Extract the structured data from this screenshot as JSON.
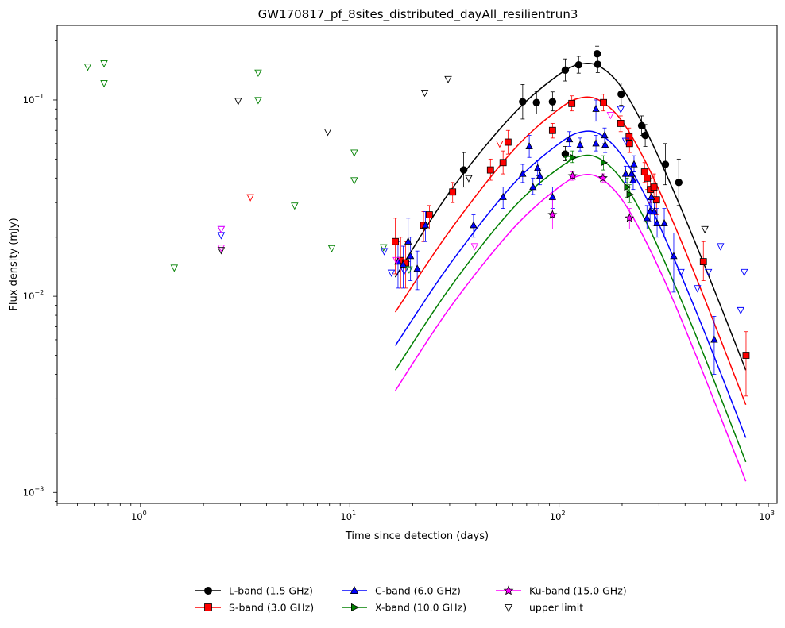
{
  "chart_data": {
    "type": "scatter",
    "title": "GW170817_pf_8sites_distributed_dayAll_resilientrun3",
    "xlabel": "Time since detection (days)",
    "ylabel": "Flux density (mJy)",
    "xscale": "log",
    "yscale": "log",
    "xlim": [
      0.4,
      1100
    ],
    "ylim": [
      0.00088,
      0.24
    ],
    "grid": false,
    "legend_position": "bottom-center",
    "x_ticks": [
      {
        "value": 1,
        "base": "10",
        "exp": "0"
      },
      {
        "value": 10,
        "base": "10",
        "exp": "1"
      },
      {
        "value": 100,
        "base": "10",
        "exp": "2"
      },
      {
        "value": 1000,
        "base": "10",
        "exp": "3"
      }
    ],
    "y_ticks": [
      {
        "value": 0.001,
        "base": "10",
        "exp": "−3"
      },
      {
        "value": 0.01,
        "base": "10",
        "exp": "−2"
      },
      {
        "value": 0.1,
        "base": "10",
        "exp": "−1"
      }
    ],
    "series": [
      {
        "name": "L-band (1.5 GHz)",
        "color": "#000000",
        "marker": "circle",
        "curve": [
          [
            16.5,
            0.0125
          ],
          [
            30,
            0.034
          ],
          [
            60,
            0.084
          ],
          [
            100,
            0.135
          ],
          [
            130,
            0.153
          ],
          [
            160,
            0.146
          ],
          [
            200,
            0.115
          ],
          [
            260,
            0.07
          ],
          [
            350,
            0.035
          ],
          [
            500,
            0.014
          ],
          [
            780,
            0.0042
          ]
        ],
        "points": [
          {
            "x": 35,
            "y": 0.044,
            "lo": 0.036,
            "hi": 0.054
          },
          {
            "x": 67,
            "y": 0.098,
            "lo": 0.08,
            "hi": 0.12
          },
          {
            "x": 78,
            "y": 0.097,
            "lo": 0.085,
            "hi": 0.11
          },
          {
            "x": 93,
            "y": 0.098,
            "lo": 0.088,
            "hi": 0.11
          },
          {
            "x": 107,
            "y": 0.142,
            "lo": 0.125,
            "hi": 0.162
          },
          {
            "x": 107,
            "y": 0.053,
            "lo": 0.049,
            "hi": 0.058
          },
          {
            "x": 124,
            "y": 0.151,
            "lo": 0.137,
            "hi": 0.167
          },
          {
            "x": 152,
            "y": 0.172,
            "lo": 0.157,
            "hi": 0.188
          },
          {
            "x": 153,
            "y": 0.152,
            "lo": 0.138,
            "hi": 0.167
          },
          {
            "x": 198,
            "y": 0.107,
            "lo": 0.094,
            "hi": 0.122
          },
          {
            "x": 248,
            "y": 0.074,
            "lo": 0.066,
            "hi": 0.083
          },
          {
            "x": 258,
            "y": 0.066,
            "lo": 0.058,
            "hi": 0.075
          },
          {
            "x": 322,
            "y": 0.047,
            "lo": 0.037,
            "hi": 0.06
          },
          {
            "x": 373,
            "y": 0.038,
            "lo": 0.029,
            "hi": 0.05
          }
        ]
      },
      {
        "name": "S-band (3.0 GHz)",
        "color": "#ff0000",
        "marker": "square",
        "curve": [
          [
            16.5,
            0.0083
          ],
          [
            30,
            0.0215
          ],
          [
            60,
            0.055
          ],
          [
            100,
            0.09
          ],
          [
            130,
            0.103
          ],
          [
            160,
            0.098
          ],
          [
            200,
            0.078
          ],
          [
            260,
            0.048
          ],
          [
            350,
            0.024
          ],
          [
            500,
            0.0095
          ],
          [
            780,
            0.0028
          ]
        ],
        "points": [
          {
            "x": 16.5,
            "y": 0.019,
            "lo": 0.013,
            "hi": 0.025
          },
          {
            "x": 17.5,
            "y": 0.0152,
            "lo": 0.011,
            "hi": 0.02
          },
          {
            "x": 18.5,
            "y": 0.0148,
            "lo": 0.011,
            "hi": 0.019
          },
          {
            "x": 22.5,
            "y": 0.023,
            "lo": 0.019,
            "hi": 0.027
          },
          {
            "x": 24,
            "y": 0.026,
            "lo": 0.022,
            "hi": 0.029
          },
          {
            "x": 31,
            "y": 0.034,
            "lo": 0.03,
            "hi": 0.038
          },
          {
            "x": 47,
            "y": 0.044,
            "lo": 0.039,
            "hi": 0.05
          },
          {
            "x": 54,
            "y": 0.048,
            "lo": 0.042,
            "hi": 0.055
          },
          {
            "x": 57,
            "y": 0.061,
            "lo": 0.053,
            "hi": 0.07
          },
          {
            "x": 93,
            "y": 0.07,
            "lo": 0.064,
            "hi": 0.076
          },
          {
            "x": 115,
            "y": 0.096,
            "lo": 0.088,
            "hi": 0.105
          },
          {
            "x": 163,
            "y": 0.097,
            "lo": 0.088,
            "hi": 0.107
          },
          {
            "x": 197,
            "y": 0.076,
            "lo": 0.069,
            "hi": 0.083
          },
          {
            "x": 216,
            "y": 0.065,
            "lo": 0.059,
            "hi": 0.072
          },
          {
            "x": 217,
            "y": 0.06,
            "lo": 0.054,
            "hi": 0.066
          },
          {
            "x": 256,
            "y": 0.043,
            "lo": 0.038,
            "hi": 0.048
          },
          {
            "x": 264,
            "y": 0.04,
            "lo": 0.035,
            "hi": 0.045
          },
          {
            "x": 273,
            "y": 0.035,
            "lo": 0.03,
            "hi": 0.04
          },
          {
            "x": 284,
            "y": 0.036,
            "lo": 0.031,
            "hi": 0.042
          },
          {
            "x": 292,
            "y": 0.031,
            "lo": 0.026,
            "hi": 0.036
          },
          {
            "x": 489,
            "y": 0.015,
            "lo": 0.012,
            "hi": 0.019
          },
          {
            "x": 782,
            "y": 0.005,
            "lo": 0.0031,
            "hi": 0.0066
          }
        ]
      },
      {
        "name": "C-band (6.0 GHz)",
        "color": "#0000ff",
        "marker": "triangle-up",
        "curve": [
          [
            16.5,
            0.0056
          ],
          [
            30,
            0.0145
          ],
          [
            60,
            0.037
          ],
          [
            100,
            0.06
          ],
          [
            130,
            0.069
          ],
          [
            160,
            0.066
          ],
          [
            200,
            0.052
          ],
          [
            260,
            0.032
          ],
          [
            350,
            0.016
          ],
          [
            500,
            0.0064
          ],
          [
            780,
            0.0019
          ]
        ],
        "points": [
          {
            "x": 17,
            "y": 0.015,
            "lo": 0.011,
            "hi": 0.019
          },
          {
            "x": 18,
            "y": 0.0145,
            "lo": 0.011,
            "hi": 0.018
          },
          {
            "x": 19,
            "y": 0.019,
            "lo": 0.015,
            "hi": 0.025
          },
          {
            "x": 19.5,
            "y": 0.016,
            "lo": 0.012,
            "hi": 0.02
          },
          {
            "x": 21,
            "y": 0.0138,
            "lo": 0.0108,
            "hi": 0.017
          },
          {
            "x": 23,
            "y": 0.023,
            "lo": 0.019,
            "hi": 0.027
          },
          {
            "x": 39,
            "y": 0.023,
            "lo": 0.02,
            "hi": 0.026
          },
          {
            "x": 54,
            "y": 0.032,
            "lo": 0.028,
            "hi": 0.036
          },
          {
            "x": 67,
            "y": 0.042,
            "lo": 0.038,
            "hi": 0.047
          },
          {
            "x": 72,
            "y": 0.058,
            "lo": 0.051,
            "hi": 0.066
          },
          {
            "x": 75,
            "y": 0.036,
            "lo": 0.033,
            "hi": 0.04
          },
          {
            "x": 79,
            "y": 0.045,
            "lo": 0.041,
            "hi": 0.049
          },
          {
            "x": 81,
            "y": 0.041,
            "lo": 0.037,
            "hi": 0.045
          },
          {
            "x": 93,
            "y": 0.032,
            "lo": 0.028,
            "hi": 0.036
          },
          {
            "x": 112,
            "y": 0.063,
            "lo": 0.058,
            "hi": 0.069
          },
          {
            "x": 126,
            "y": 0.059,
            "lo": 0.055,
            "hi": 0.064
          },
          {
            "x": 150,
            "y": 0.09,
            "lo": 0.078,
            "hi": 0.1
          },
          {
            "x": 150,
            "y": 0.06,
            "lo": 0.055,
            "hi": 0.066
          },
          {
            "x": 165,
            "y": 0.066,
            "lo": 0.06,
            "hi": 0.072
          },
          {
            "x": 166,
            "y": 0.059,
            "lo": 0.054,
            "hi": 0.065
          },
          {
            "x": 208,
            "y": 0.042,
            "lo": 0.038,
            "hi": 0.046
          },
          {
            "x": 222,
            "y": 0.042,
            "lo": 0.038,
            "hi": 0.046
          },
          {
            "x": 226,
            "y": 0.039,
            "lo": 0.035,
            "hi": 0.043
          },
          {
            "x": 228,
            "y": 0.047,
            "lo": 0.043,
            "hi": 0.052
          },
          {
            "x": 263,
            "y": 0.025,
            "lo": 0.022,
            "hi": 0.029
          },
          {
            "x": 272,
            "y": 0.027,
            "lo": 0.024,
            "hi": 0.031
          },
          {
            "x": 276,
            "y": 0.032,
            "lo": 0.028,
            "hi": 0.036
          },
          {
            "x": 285,
            "y": 0.027,
            "lo": 0.023,
            "hi": 0.032
          },
          {
            "x": 294,
            "y": 0.0235,
            "lo": 0.02,
            "hi": 0.028
          },
          {
            "x": 318,
            "y": 0.0235,
            "lo": 0.02,
            "hi": 0.028
          },
          {
            "x": 353,
            "y": 0.016,
            "lo": 0.0105,
            "hi": 0.021
          },
          {
            "x": 551,
            "y": 0.006,
            "lo": 0.004,
            "hi": 0.0079
          }
        ]
      },
      {
        "name": "X-band (10.0 GHz)",
        "color": "#008000",
        "marker": "triangle-right",
        "curve": [
          [
            16.5,
            0.0042
          ],
          [
            30,
            0.011
          ],
          [
            60,
            0.028
          ],
          [
            100,
            0.045
          ],
          [
            130,
            0.052
          ],
          [
            160,
            0.0495
          ],
          [
            200,
            0.039
          ],
          [
            260,
            0.024
          ],
          [
            350,
            0.012
          ],
          [
            500,
            0.0048
          ],
          [
            780,
            0.00143
          ]
        ],
        "points": [
          {
            "x": 116,
            "y": 0.051,
            "lo": 0.048,
            "hi": 0.055
          },
          {
            "x": 163,
            "y": 0.048,
            "lo": 0.044,
            "hi": 0.052
          },
          {
            "x": 211,
            "y": 0.036,
            "lo": 0.032,
            "hi": 0.04
          },
          {
            "x": 217,
            "y": 0.033,
            "lo": 0.03,
            "hi": 0.037
          }
        ]
      },
      {
        "name": "Ku-band (15.0 GHz)",
        "color": "#ff00ff",
        "marker": "star",
        "curve": [
          [
            16.5,
            0.0033
          ],
          [
            30,
            0.0087
          ],
          [
            60,
            0.022
          ],
          [
            100,
            0.036
          ],
          [
            130,
            0.0415
          ],
          [
            160,
            0.0395
          ],
          [
            200,
            0.031
          ],
          [
            260,
            0.019
          ],
          [
            350,
            0.0096
          ],
          [
            500,
            0.0038
          ],
          [
            780,
            0.00114
          ]
        ],
        "points": [
          {
            "x": 93,
            "y": 0.026,
            "lo": 0.022,
            "hi": 0.031
          },
          {
            "x": 116,
            "y": 0.041,
            "lo": 0.039,
            "hi": 0.043
          },
          {
            "x": 162,
            "y": 0.04,
            "lo": 0.038,
            "hi": 0.042
          },
          {
            "x": 217,
            "y": 0.025,
            "lo": 0.022,
            "hi": 0.028
          }
        ]
      }
    ],
    "upper_limits": {
      "name": "upper limit",
      "points": [
        {
          "x": 0.56,
          "y": 0.148,
          "color": "#008000"
        },
        {
          "x": 0.67,
          "y": 0.154,
          "color": "#008000"
        },
        {
          "x": 0.67,
          "y": 0.122,
          "color": "#008000"
        },
        {
          "x": 1.45,
          "y": 0.014,
          "color": "#008000"
        },
        {
          "x": 2.43,
          "y": 0.022,
          "color": "#0000ff"
        },
        {
          "x": 2.43,
          "y": 0.0205,
          "color": "#0000ff"
        },
        {
          "x": 2.43,
          "y": 0.022,
          "color": "#ff00ff"
        },
        {
          "x": 2.43,
          "y": 0.0177,
          "color": "#ff00ff"
        },
        {
          "x": 2.43,
          "y": 0.0172,
          "color": "#000000"
        },
        {
          "x": 2.93,
          "y": 0.099,
          "color": "#000000"
        },
        {
          "x": 3.35,
          "y": 0.032,
          "color": "#ff0000"
        },
        {
          "x": 3.65,
          "y": 0.138,
          "color": "#008000"
        },
        {
          "x": 3.65,
          "y": 0.1,
          "color": "#008000"
        },
        {
          "x": 5.45,
          "y": 0.029,
          "color": "#008000"
        },
        {
          "x": 7.85,
          "y": 0.069,
          "color": "#000000"
        },
        {
          "x": 8.2,
          "y": 0.0176,
          "color": "#008000"
        },
        {
          "x": 10.5,
          "y": 0.054,
          "color": "#008000"
        },
        {
          "x": 10.5,
          "y": 0.039,
          "color": "#008000"
        },
        {
          "x": 14.5,
          "y": 0.0178,
          "color": "#008000"
        },
        {
          "x": 14.6,
          "y": 0.017,
          "color": "#0000ff"
        },
        {
          "x": 15.8,
          "y": 0.0132,
          "color": "#0000ff"
        },
        {
          "x": 16.7,
          "y": 0.0153,
          "color": "#ff00ff"
        },
        {
          "x": 18.2,
          "y": 0.0135,
          "color": "#0000ff"
        },
        {
          "x": 19.2,
          "y": 0.0137,
          "color": "#008000"
        },
        {
          "x": 22.8,
          "y": 0.109,
          "color": "#000000"
        },
        {
          "x": 29.5,
          "y": 0.128,
          "color": "#000000"
        },
        {
          "x": 37,
          "y": 0.04,
          "color": "#000000"
        },
        {
          "x": 39.5,
          "y": 0.018,
          "color": "#ff00ff"
        },
        {
          "x": 52,
          "y": 0.06,
          "color": "#ff0000"
        },
        {
          "x": 110,
          "y": 0.05,
          "color": "#008000"
        },
        {
          "x": 176,
          "y": 0.084,
          "color": "#ff00ff"
        },
        {
          "x": 197,
          "y": 0.09,
          "color": "#0000ff"
        },
        {
          "x": 208,
          "y": 0.062,
          "color": "#0000ff"
        },
        {
          "x": 382,
          "y": 0.0133,
          "color": "#0000ff"
        },
        {
          "x": 458,
          "y": 0.011,
          "color": "#0000ff"
        },
        {
          "x": 497,
          "y": 0.022,
          "color": "#000000"
        },
        {
          "x": 517,
          "y": 0.0133,
          "color": "#0000ff"
        },
        {
          "x": 590,
          "y": 0.018,
          "color": "#0000ff"
        },
        {
          "x": 737,
          "y": 0.0085,
          "color": "#0000ff"
        },
        {
          "x": 767,
          "y": 0.0133,
          "color": "#0000ff"
        }
      ]
    }
  }
}
